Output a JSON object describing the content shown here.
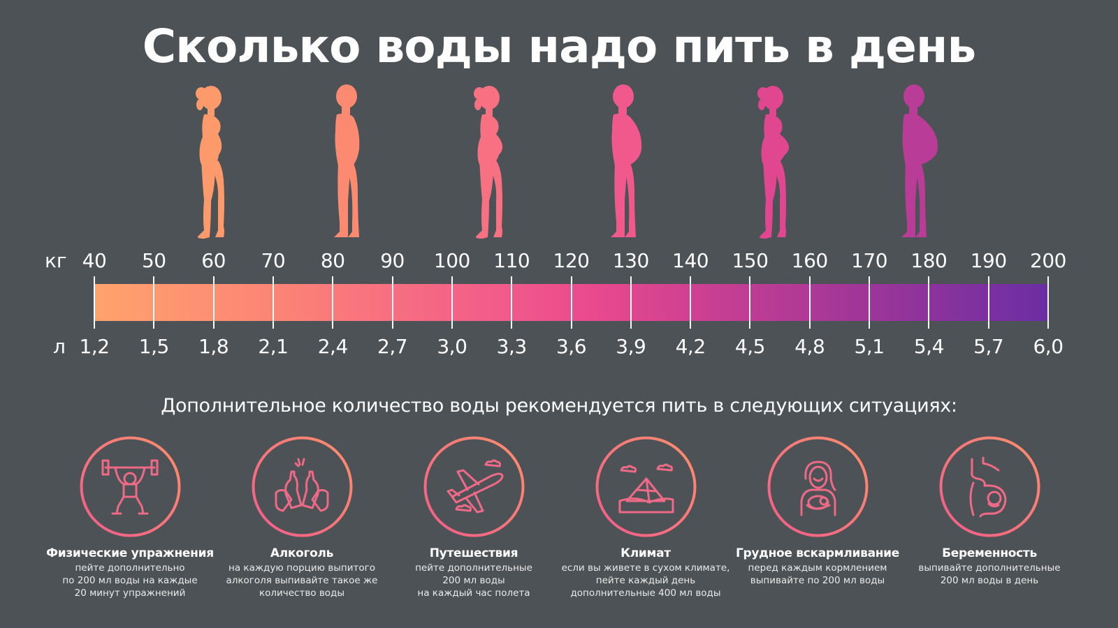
{
  "title": "Сколько воды надо пить в день",
  "scale": {
    "weight_unit": "кг",
    "volume_unit": "л",
    "weights": [
      "40",
      "50",
      "60",
      "70",
      "80",
      "90",
      "100",
      "110",
      "120",
      "130",
      "140",
      "150",
      "160",
      "170",
      "180",
      "190",
      "200"
    ],
    "liters": [
      "1,2",
      "1,5",
      "1,8",
      "2,1",
      "2,4",
      "2,7",
      "3,0",
      "3,3",
      "3,6",
      "3,9",
      "4,2",
      "4,5",
      "4,8",
      "5,1",
      "5,4",
      "5,7",
      "6,0"
    ],
    "gradient_colors": [
      "#ffa36c",
      "#f25c8a",
      "#6a2ea3"
    ]
  },
  "figures": [
    {
      "icon": "woman-silhouette-slim-icon",
      "color": "#fd9a6c"
    },
    {
      "icon": "man-silhouette-slim-icon",
      "color": "#fb8a70"
    },
    {
      "icon": "woman-silhouette-medium-icon",
      "color": "#f77182"
    },
    {
      "icon": "man-silhouette-medium-icon",
      "color": "#f1598c"
    },
    {
      "icon": "woman-silhouette-heavy-icon",
      "color": "#e0478f"
    },
    {
      "icon": "man-silhouette-heavy-icon",
      "color": "#b93c97"
    }
  ],
  "subtitle": "Дополнительное количество воды рекомендуется пить в следующих ситуациях:",
  "situations": [
    {
      "icon": "weightlifting-icon",
      "title": "Физические упражнения",
      "desc": [
        "пейте дополнительно",
        "по 200 мл воды на каждые",
        "20 минут упражнений"
      ]
    },
    {
      "icon": "beer-toast-icon",
      "title": "Алкоголь",
      "desc": [
        "на каждую порцию выпитого",
        "алкоголя выпивайте такое же",
        "количество воды"
      ]
    },
    {
      "icon": "airplane-icon",
      "title": "Путешествия",
      "desc": [
        "пейте дополнительные",
        "200 мл воды",
        "на каждый час полета"
      ]
    },
    {
      "icon": "desert-pyramid-icon",
      "title": "Климат",
      "desc": [
        "если вы живете в сухом климате,",
        "пейте каждый день",
        "дополнительные 400 мл воды"
      ]
    },
    {
      "icon": "breastfeeding-icon",
      "title": "Грудное вскармливание",
      "desc": [
        "перед каждым кормлением",
        "выпивайте по 200 мл воды"
      ]
    },
    {
      "icon": "pregnancy-icon",
      "title": "Беременность",
      "desc": [
        "выпивайте дополнительные",
        "200 мл воды в день"
      ]
    }
  ],
  "colors": {
    "background": "#4d5256",
    "text": "#ffffff",
    "ring_start": "#f25c8a",
    "ring_end": "#ff8f6c"
  }
}
